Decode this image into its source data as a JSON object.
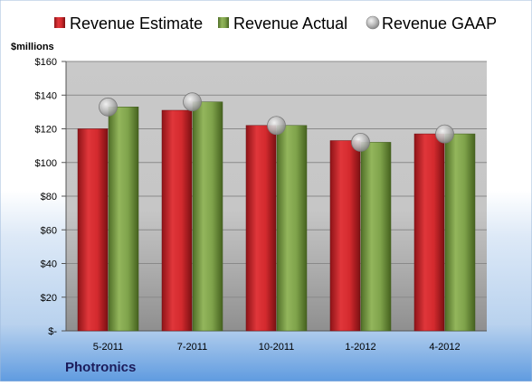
{
  "chart_data": {
    "type": "bar",
    "title": "",
    "xlabel": "",
    "ylabel": "$millions",
    "company": "Photronics",
    "ylim": [
      0,
      160
    ],
    "yticks": [
      0,
      20,
      40,
      60,
      80,
      100,
      120,
      140,
      160
    ],
    "yticks_labels": [
      "$-",
      "$20",
      "$40",
      "$60",
      "$80",
      "$100",
      "$120",
      "$140",
      "$160"
    ],
    "categories": [
      "5-2011",
      "7-2011",
      "10-2011",
      "1-2012",
      "4-2012"
    ],
    "series": [
      {
        "name": "Revenue Estimate",
        "type": "bar",
        "color": "#d42a2e",
        "values": [
          120,
          131,
          122,
          113,
          117
        ]
      },
      {
        "name": "Revenue Actual",
        "type": "bar",
        "color": "#7fa34b",
        "values": [
          133,
          136,
          122,
          112,
          117
        ]
      },
      {
        "name": "Revenue GAAP",
        "type": "marker",
        "color": "#b8b8b8",
        "values": [
          133,
          136,
          122,
          112,
          117
        ]
      }
    ],
    "legend": "top",
    "grid": true
  }
}
